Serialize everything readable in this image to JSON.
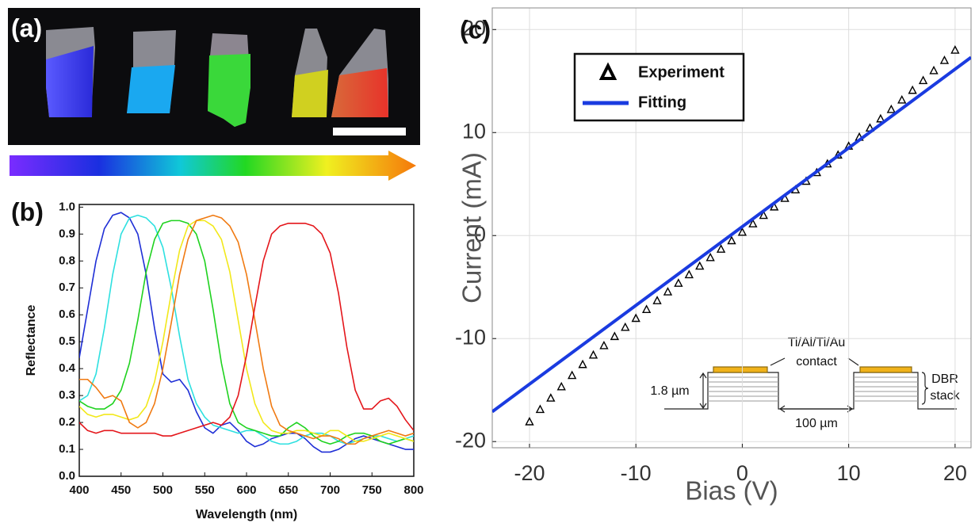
{
  "panel_a": {
    "label": "(a)"
  },
  "chart_data": [
    {
      "type": "line",
      "panel_label": "(b)",
      "xlabel": "Wavelength (nm)",
      "ylabel": "Reflectance",
      "xlim": [
        400,
        800
      ],
      "ylim": [
        0,
        1.01
      ],
      "xticks": [
        400,
        450,
        500,
        550,
        600,
        650,
        700,
        750,
        800
      ],
      "yticks": [
        {
          "value": 0,
          "label": "0.0"
        },
        0.1,
        0.2,
        0.3,
        0.4,
        0.5,
        0.6,
        0.7,
        0.8,
        0.9,
        {
          "value": 1,
          "label": "1.0"
        }
      ],
      "grid": false,
      "x": [
        400,
        410,
        420,
        430,
        440,
        450,
        460,
        470,
        480,
        490,
        500,
        510,
        520,
        530,
        540,
        550,
        560,
        570,
        580,
        590,
        600,
        610,
        620,
        630,
        640,
        650,
        660,
        670,
        680,
        690,
        700,
        710,
        720,
        730,
        740,
        750,
        760,
        770,
        780,
        790,
        800
      ],
      "series": [
        {
          "color": "#1f2fd6",
          "values": [
            0.44,
            0.62,
            0.8,
            0.92,
            0.97,
            0.98,
            0.96,
            0.9,
            0.75,
            0.55,
            0.38,
            0.35,
            0.36,
            0.32,
            0.24,
            0.18,
            0.16,
            0.19,
            0.2,
            0.17,
            0.13,
            0.11,
            0.12,
            0.14,
            0.15,
            0.16,
            0.16,
            0.14,
            0.11,
            0.09,
            0.09,
            0.1,
            0.12,
            0.14,
            0.15,
            0.14,
            0.13,
            0.12,
            0.11,
            0.1,
            0.1
          ]
        },
        {
          "color": "#2ee0e0",
          "values": [
            0.28,
            0.3,
            0.38,
            0.55,
            0.75,
            0.9,
            0.96,
            0.97,
            0.96,
            0.93,
            0.85,
            0.7,
            0.52,
            0.36,
            0.27,
            0.22,
            0.19,
            0.18,
            0.17,
            0.16,
            0.17,
            0.17,
            0.15,
            0.13,
            0.12,
            0.12,
            0.13,
            0.15,
            0.16,
            0.16,
            0.15,
            0.13,
            0.12,
            0.13,
            0.14,
            0.15,
            0.15,
            0.14,
            0.13,
            0.14,
            0.15
          ]
        },
        {
          "color": "#1fd21f",
          "values": [
            0.28,
            0.26,
            0.25,
            0.25,
            0.27,
            0.32,
            0.42,
            0.58,
            0.76,
            0.88,
            0.94,
            0.95,
            0.95,
            0.94,
            0.9,
            0.8,
            0.62,
            0.42,
            0.27,
            0.2,
            0.18,
            0.17,
            0.16,
            0.15,
            0.15,
            0.18,
            0.2,
            0.18,
            0.15,
            0.13,
            0.12,
            0.13,
            0.15,
            0.16,
            0.16,
            0.15,
            0.13,
            0.12,
            0.13,
            0.14,
            0.13
          ]
        },
        {
          "color": "#f2e81a",
          "values": [
            0.26,
            0.23,
            0.22,
            0.23,
            0.23,
            0.22,
            0.21,
            0.22,
            0.26,
            0.35,
            0.5,
            0.68,
            0.84,
            0.93,
            0.95,
            0.95,
            0.93,
            0.88,
            0.76,
            0.58,
            0.4,
            0.27,
            0.2,
            0.17,
            0.16,
            0.16,
            0.17,
            0.17,
            0.16,
            0.15,
            0.17,
            0.17,
            0.15,
            0.13,
            0.13,
            0.14,
            0.15,
            0.16,
            0.15,
            0.14,
            0.13
          ]
        },
        {
          "color": "#f07a12",
          "values": [
            0.36,
            0.36,
            0.33,
            0.29,
            0.3,
            0.28,
            0.2,
            0.18,
            0.2,
            0.27,
            0.4,
            0.57,
            0.75,
            0.88,
            0.95,
            0.96,
            0.97,
            0.96,
            0.93,
            0.87,
            0.75,
            0.58,
            0.4,
            0.26,
            0.19,
            0.17,
            0.16,
            0.15,
            0.14,
            0.15,
            0.15,
            0.14,
            0.12,
            0.12,
            0.14,
            0.15,
            0.16,
            0.17,
            0.16,
            0.15,
            0.16
          ]
        },
        {
          "color": "#e4161b",
          "values": [
            0.2,
            0.17,
            0.16,
            0.17,
            0.17,
            0.16,
            0.16,
            0.16,
            0.16,
            0.16,
            0.15,
            0.15,
            0.16,
            0.17,
            0.18,
            0.19,
            0.2,
            0.19,
            0.22,
            0.3,
            0.45,
            0.63,
            0.8,
            0.9,
            0.93,
            0.94,
            0.94,
            0.94,
            0.93,
            0.9,
            0.83,
            0.68,
            0.48,
            0.32,
            0.25,
            0.25,
            0.28,
            0.29,
            0.26,
            0.21,
            0.17
          ]
        }
      ]
    },
    {
      "type": "line",
      "panel_label": "(c)",
      "xlabel": "Bias (V)",
      "ylabel": "Current (mA)",
      "xlim": [
        -23.5,
        21.5
      ],
      "ylim": [
        -20.6,
        22.1
      ],
      "xticks": [
        -20,
        -10,
        0,
        10,
        20
      ],
      "yticks": [
        -20,
        -10,
        0,
        10,
        20
      ],
      "grid": true,
      "legend": "upper left",
      "series": [
        {
          "name": "Experiment",
          "color": "#000000",
          "marker": "triangle",
          "x": [
            -20,
            -19,
            -18,
            -17,
            -16,
            -15,
            -14,
            -13,
            -12,
            -11,
            -10,
            -9,
            -8,
            -7,
            -6,
            -5,
            -4,
            -3,
            -2,
            -1,
            0,
            1,
            2,
            3,
            4,
            5,
            6,
            7,
            8,
            9,
            10,
            11,
            12,
            13,
            14,
            15,
            16,
            17,
            18,
            19,
            20
          ],
          "values": [
            -18.1,
            -16.9,
            -15.8,
            -14.7,
            -13.6,
            -12.54,
            -11.62,
            -10.71,
            -9.82,
            -8.93,
            -8.06,
            -7.2,
            -6.34,
            -5.49,
            -4.65,
            -3.82,
            -2.99,
            -2.16,
            -1.34,
            -0.52,
            0.3,
            1.12,
            1.94,
            2.76,
            3.59,
            4.42,
            5.25,
            6.09,
            6.94,
            7.8,
            8.66,
            9.53,
            10.42,
            11.31,
            12.22,
            13.14,
            14.08,
            15.03,
            15.99,
            16.98,
            17.98
          ]
        },
        {
          "name": "Fitting",
          "color": "#1a3be0",
          "x": [
            -23.5,
            21.5
          ],
          "values": [
            -17.1,
            17.3
          ]
        }
      ],
      "annotations": [
        "Ti/Al/Ti/Au",
        "contact",
        "1.8 µm",
        "100 µm",
        "DBR",
        "stack"
      ]
    }
  ]
}
